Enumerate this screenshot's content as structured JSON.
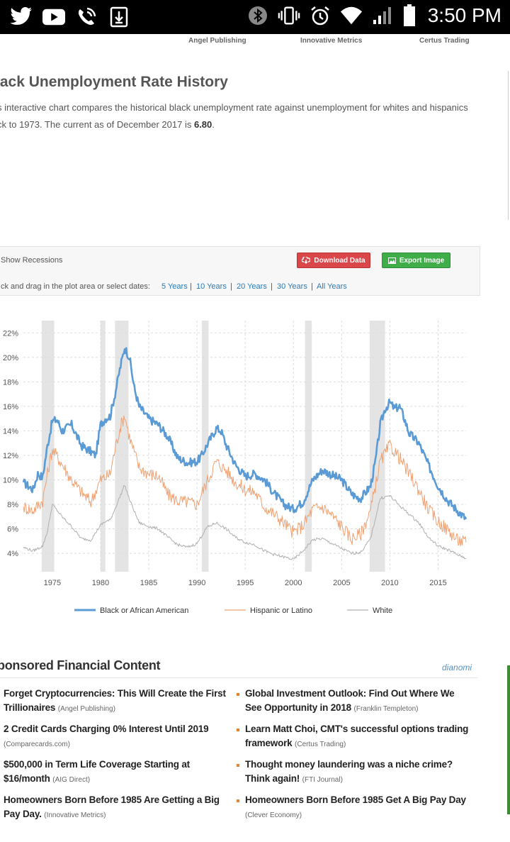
{
  "status_bar": {
    "time": "3:50 PM",
    "icons_left": [
      "twitter-icon",
      "youtube-icon",
      "phone-wifi-icon",
      "download-icon"
    ],
    "icons_right": [
      "bluetooth-icon",
      "vibrate-icon",
      "alarm-icon",
      "wifi-icon",
      "signal-icon",
      "battery-icon"
    ]
  },
  "top_links": [
    "Angel Publishing",
    "Innovative Metrics",
    "Certus Trading"
  ],
  "page": {
    "title": "lack Unemployment Rate History",
    "desc_line1": "s interactive chart compares the historical black unemployment rate against unemployment for whites and hispanics",
    "desc_line2_pre": "ck to 1973. The current as of December 2017 is ",
    "desc_value": "6.80",
    "desc_line2_post": "."
  },
  "controls": {
    "show_recessions": "Show Recessions",
    "download_label": "Download Data",
    "export_label": "Export Image",
    "drag_text": "ck and drag in the plot area or select dates:",
    "ranges": [
      "5 Years",
      "10 Years",
      "20 Years",
      "30 Years",
      "All Years"
    ]
  },
  "chart_data": {
    "type": "line",
    "title": "",
    "xlabel": "",
    "ylabel": "",
    "xlim": [
      1972,
      2017.9
    ],
    "ylim": [
      2.5,
      23
    ],
    "x_ticks": [
      1975,
      1980,
      1985,
      1990,
      1995,
      2000,
      2005,
      2010,
      2015
    ],
    "y_ticks": [
      4,
      6,
      8,
      10,
      12,
      14,
      16,
      18,
      20,
      22
    ],
    "y_tick_labels": [
      "4%",
      "6%",
      "8%",
      "10%",
      "12%",
      "14%",
      "16%",
      "18%",
      "20%",
      "22%"
    ],
    "grid": true,
    "legend_position": "bottom",
    "recessions": [
      [
        1973.9,
        1975.2
      ],
      [
        1980.0,
        1980.5
      ],
      [
        1981.5,
        1982.9
      ],
      [
        1990.5,
        1991.2
      ],
      [
        2001.2,
        2001.9
      ],
      [
        2007.9,
        2009.5
      ]
    ],
    "colors": {
      "Black or African American": "#5b9bd5",
      "Hispanic or Latino": "#f0a070",
      "White": "#b0b0b0",
      "recession": "#e4e4e4"
    },
    "series": [
      {
        "name": "Black or African American",
        "x": [
          1972.0,
          1973.0,
          1973.5,
          1974.0,
          1974.5,
          1975.0,
          1975.5,
          1976.0,
          1977.0,
          1978.0,
          1979.0,
          1979.5,
          1980.0,
          1980.5,
          1981.0,
          1981.5,
          1982.0,
          1982.5,
          1983.0,
          1983.5,
          1984.0,
          1985.0,
          1986.0,
          1987.0,
          1988.0,
          1989.0,
          1990.0,
          1990.5,
          1991.0,
          1991.5,
          1992.0,
          1992.5,
          1993.0,
          1994.0,
          1995.0,
          1996.0,
          1997.0,
          1998.0,
          1999.0,
          2000.0,
          2001.0,
          2002.0,
          2003.0,
          2004.0,
          2005.0,
          2006.0,
          2006.5,
          2007.0,
          2008.0,
          2008.5,
          2009.0,
          2009.5,
          2010.0,
          2010.5,
          2011.0,
          2011.5,
          2012.0,
          2013.0,
          2014.0,
          2015.0,
          2016.0,
          2017.0,
          2017.9
        ],
        "values": [
          9.8,
          9.2,
          10.5,
          10.2,
          12.8,
          14.8,
          14.9,
          14.0,
          14.5,
          12.8,
          12.3,
          12.0,
          14.5,
          15.0,
          15.2,
          17.0,
          19.0,
          20.8,
          20.0,
          17.5,
          16.0,
          15.0,
          14.5,
          13.5,
          11.8,
          11.4,
          11.5,
          12.0,
          12.8,
          13.5,
          14.2,
          14.0,
          12.9,
          11.2,
          10.3,
          10.5,
          10.0,
          8.9,
          8.0,
          7.6,
          8.2,
          10.0,
          10.8,
          10.4,
          10.0,
          8.9,
          8.6,
          8.5,
          9.5,
          11.5,
          14.5,
          15.8,
          16.3,
          15.8,
          16.0,
          15.0,
          13.8,
          13.0,
          11.2,
          9.5,
          8.3,
          7.5,
          6.8
        ]
      },
      {
        "name": "Hispanic or Latino",
        "x": [
          1972.0,
          1973.0,
          1974.0,
          1974.5,
          1975.0,
          1976.0,
          1977.0,
          1978.0,
          1979.0,
          1980.0,
          1980.5,
          1981.0,
          1981.5,
          1982.0,
          1982.5,
          1983.0,
          1984.0,
          1985.0,
          1986.0,
          1987.0,
          1988.0,
          1989.0,
          1990.0,
          1991.0,
          1992.0,
          1993.0,
          1994.0,
          1995.0,
          1996.0,
          1997.0,
          1998.0,
          1999.0,
          2000.0,
          2001.0,
          2002.0,
          2003.0,
          2004.0,
          2005.0,
          2006.0,
          2007.0,
          2008.0,
          2009.0,
          2010.0,
          2011.0,
          2012.0,
          2013.0,
          2014.0,
          2015.0,
          2016.0,
          2017.0,
          2017.9
        ],
        "values": [
          7.8,
          7.5,
          8.3,
          10.5,
          12.5,
          11.3,
          10.0,
          9.0,
          8.2,
          10.0,
          10.2,
          10.5,
          12.5,
          14.2,
          15.3,
          13.5,
          11.0,
          10.5,
          10.3,
          8.8,
          8.3,
          8.2,
          8.0,
          9.8,
          11.5,
          10.8,
          9.8,
          9.2,
          9.0,
          7.8,
          7.2,
          6.5,
          5.7,
          6.3,
          7.6,
          7.8,
          7.1,
          6.2,
          5.2,
          5.6,
          7.5,
          11.5,
          12.8,
          11.8,
          10.5,
          9.2,
          7.6,
          6.6,
          5.9,
          5.1,
          4.9
        ]
      },
      {
        "name": "White",
        "x": [
          1972.0,
          1973.0,
          1974.0,
          1974.5,
          1975.0,
          1976.0,
          1977.0,
          1978.0,
          1979.0,
          1980.0,
          1980.5,
          1981.0,
          1982.0,
          1982.5,
          1983.0,
          1984.0,
          1985.0,
          1986.0,
          1987.0,
          1988.0,
          1989.0,
          1990.0,
          1991.0,
          1992.0,
          1993.0,
          1994.0,
          1995.0,
          1996.0,
          1997.0,
          1998.0,
          1999.0,
          2000.0,
          2001.0,
          2002.0,
          2003.0,
          2004.0,
          2005.0,
          2006.0,
          2007.0,
          2008.0,
          2009.0,
          2010.0,
          2011.0,
          2012.0,
          2013.0,
          2014.0,
          2015.0,
          2016.0,
          2017.0,
          2017.9
        ],
        "values": [
          4.5,
          4.2,
          4.6,
          5.8,
          8.0,
          7.0,
          6.2,
          5.2,
          5.1,
          6.3,
          6.6,
          6.7,
          8.6,
          9.6,
          8.4,
          6.5,
          6.2,
          6.0,
          5.3,
          4.7,
          4.5,
          4.8,
          6.1,
          6.5,
          6.0,
          5.3,
          4.9,
          4.7,
          4.2,
          3.9,
          3.7,
          3.5,
          4.2,
          5.1,
          5.2,
          4.8,
          4.4,
          4.0,
          4.1,
          5.2,
          8.5,
          8.7,
          7.9,
          7.2,
          6.5,
          5.3,
          4.6,
          4.3,
          3.9,
          3.6
        ]
      }
    ]
  },
  "sponsored": {
    "title": "ponsored Financial Content",
    "brand": "dianomi",
    "left": [
      {
        "headline": "Forget Cryptocurrencies: This Will Create the First Trillionaires",
        "source": "(Angel Publishing)"
      },
      {
        "headline": "2 Credit Cards Charging 0% Interest Until 2019",
        "source": "(Comparecards.com)"
      },
      {
        "headline": "$500,000 in Term Life Coverage Starting at $16/month",
        "source": "(AIG Direct)"
      },
      {
        "headline": "Homeowners Born Before 1985 Are Getting a Big Pay Day.",
        "source": "(Innovative Metrics)"
      }
    ],
    "right": [
      {
        "headline": "Global Investment Outlook: Find Out Where We See Opportunity in 2018",
        "source": "(Franklin Templeton)"
      },
      {
        "headline": "Learn Matt Choi, CMT's successful options trading framework",
        "source": "(Certus Trading)"
      },
      {
        "headline": "Thought money laundering was a niche crime? Think again!",
        "source": "(FTI Journal)"
      },
      {
        "headline": "Homeowners Born Before 1985 Get A Big Pay Day",
        "source": "(Clever Economy)"
      }
    ]
  }
}
